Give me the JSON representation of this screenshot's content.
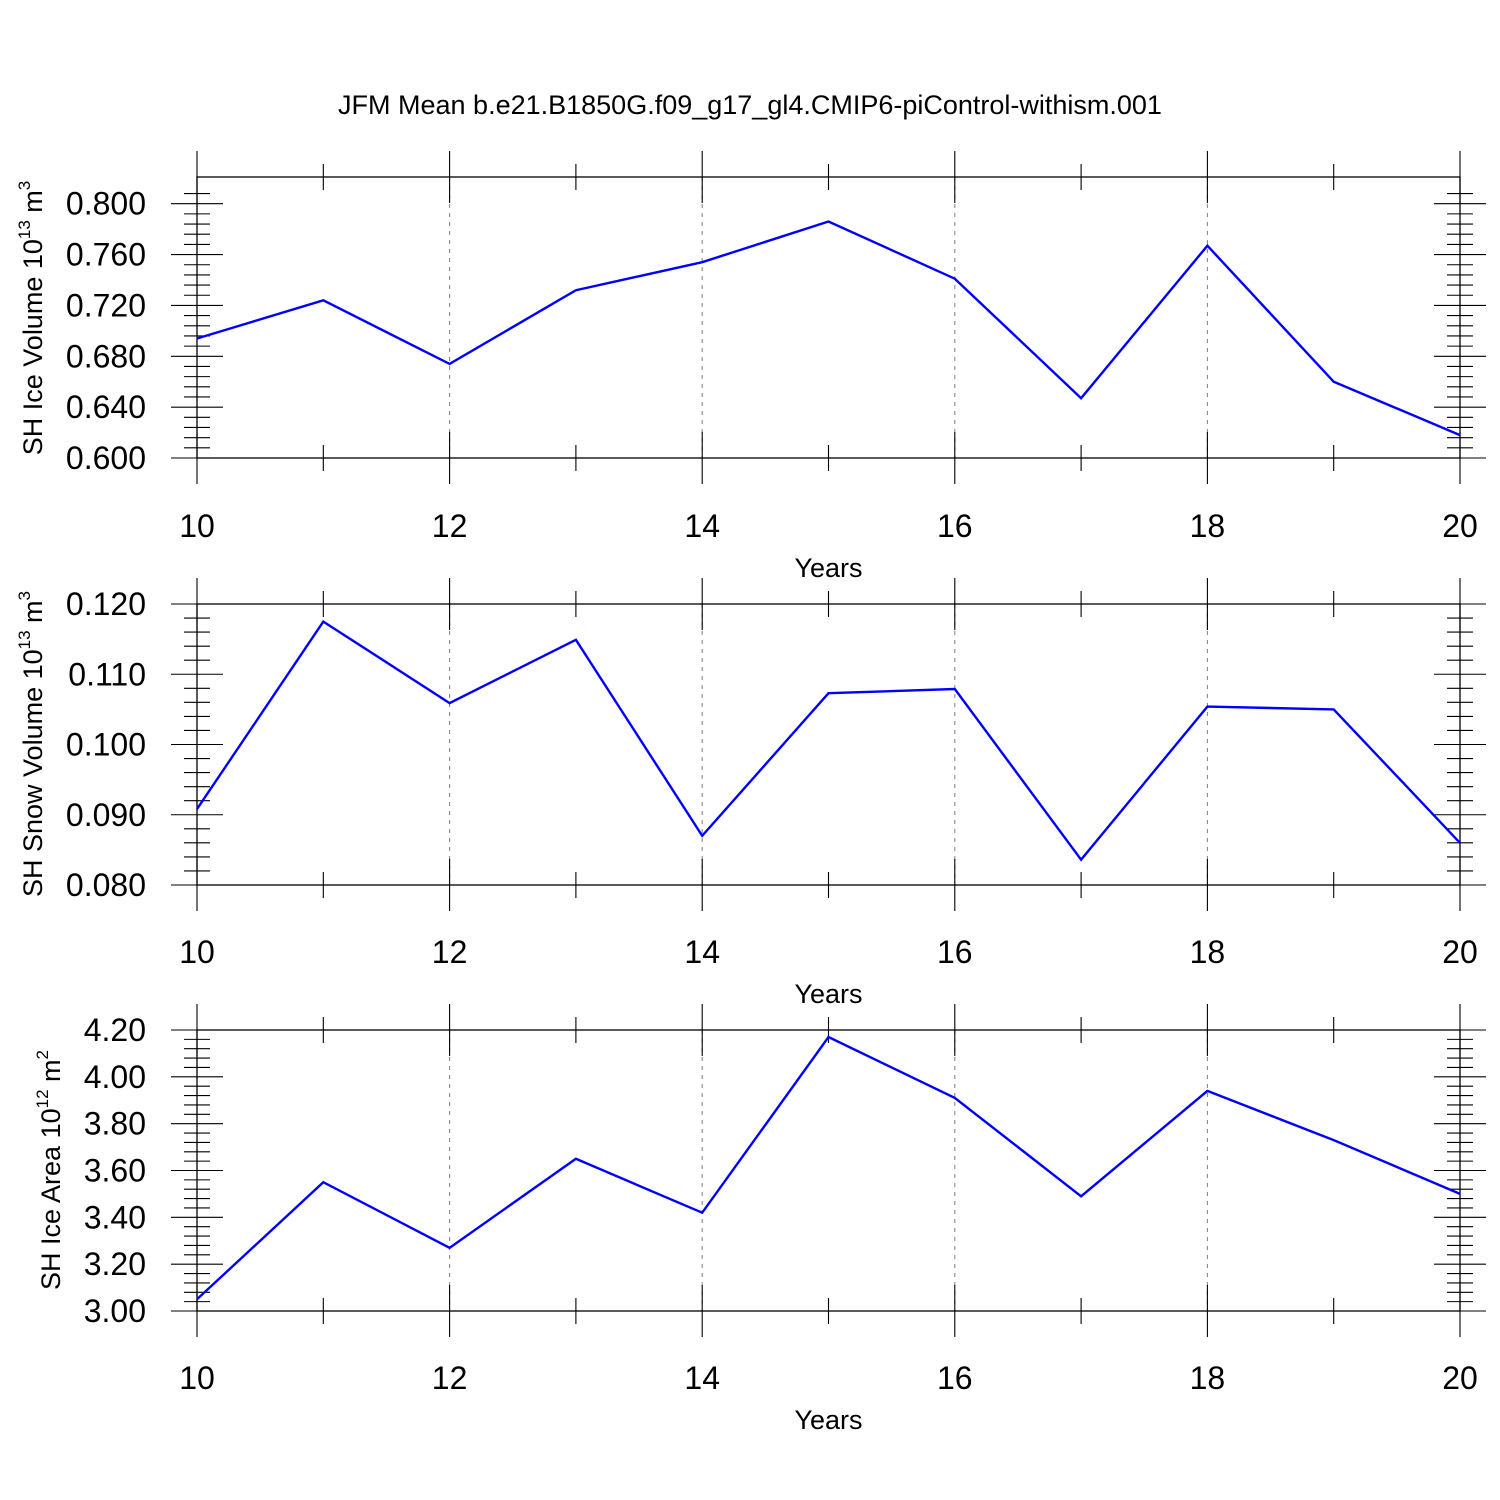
{
  "figure": {
    "title": "JFM Mean b.e21.B1850G.f09_g17_gl4.CMIP6-piControl-withism.001",
    "line_color": "#0000ff"
  },
  "chart_data": [
    {
      "type": "line",
      "xlabel": "Years",
      "ylabel": "SH Ice Volume 10",
      "ylabel_exp": "13",
      "ylabel_unit": "m",
      "ylabel_unit_exp": "3",
      "x": [
        10,
        11,
        12,
        13,
        14,
        15,
        16,
        17,
        18,
        19,
        20
      ],
      "y": [
        0.694,
        0.724,
        0.674,
        0.732,
        0.754,
        0.786,
        0.741,
        0.647,
        0.767,
        0.66,
        0.618
      ],
      "xlim": [
        10,
        20
      ],
      "ylim": [
        0.6,
        0.81
      ],
      "xticks": [
        "10",
        "12",
        "14",
        "16",
        "18",
        "20"
      ],
      "yticks": [
        "0.600",
        "0.640",
        "0.680",
        "0.720",
        "0.760",
        "0.800"
      ],
      "grid": "dashed vertical at major x ticks",
      "color": "#0000ff"
    },
    {
      "type": "line",
      "xlabel": "Years",
      "ylabel": "SH Snow Volume 10",
      "ylabel_exp": "13",
      "ylabel_unit": "m",
      "ylabel_unit_exp": "3",
      "x": [
        10,
        11,
        12,
        13,
        14,
        15,
        16,
        17,
        18,
        19,
        20
      ],
      "y": [
        0.0908,
        0.1175,
        0.1059,
        0.1149,
        0.087,
        0.1073,
        0.1079,
        0.0836,
        0.1054,
        0.105,
        0.086
      ],
      "xlim": [
        10,
        20
      ],
      "ylim": [
        0.08,
        0.12
      ],
      "xticks": [
        "10",
        "12",
        "14",
        "16",
        "18",
        "20"
      ],
      "yticks": [
        "0.080",
        "0.090",
        "0.100",
        "0.110",
        "0.120"
      ],
      "grid": "dashed vertical at major x ticks",
      "color": "#0000ff"
    },
    {
      "type": "line",
      "xlabel": "Years",
      "ylabel": "SH Ice Area 10",
      "ylabel_exp": "12",
      "ylabel_unit": "m",
      "ylabel_unit_exp": "2",
      "x": [
        10,
        11,
        12,
        13,
        14,
        15,
        16,
        17,
        18,
        19,
        20
      ],
      "y": [
        3.05,
        3.55,
        3.27,
        3.65,
        3.42,
        4.17,
        3.91,
        3.49,
        3.94,
        3.73,
        3.5
      ],
      "xlim": [
        10,
        20
      ],
      "ylim": [
        3.0,
        4.2
      ],
      "xticks": [
        "10",
        "12",
        "14",
        "16",
        "18",
        "20"
      ],
      "yticks": [
        "3.00",
        "3.20",
        "3.40",
        "3.60",
        "3.80",
        "4.00",
        "4.20"
      ],
      "grid": "dashed vertical at major x ticks",
      "color": "#0000ff"
    }
  ]
}
